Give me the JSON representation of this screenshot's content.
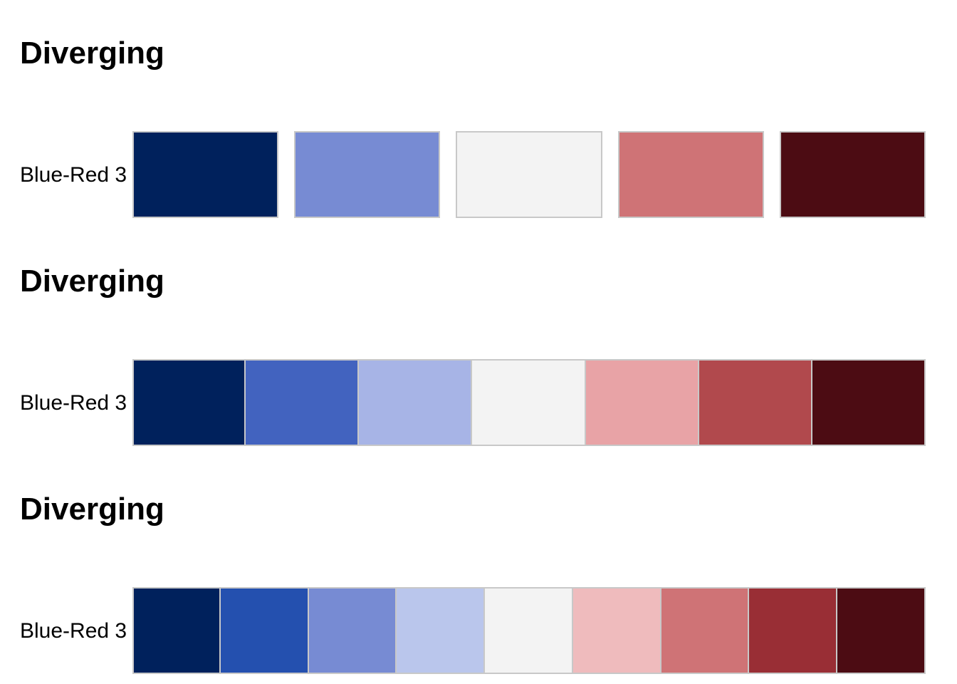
{
  "chart_data": [
    {
      "type": "palette",
      "title": "Diverging",
      "palette_name": "Blue-Red 3",
      "spacing": "gapped",
      "colors": [
        "#00215C",
        "#778BD3",
        "#F3F3F3",
        "#CF7376",
        "#4C0C13"
      ]
    },
    {
      "type": "palette",
      "title": "Diverging",
      "palette_name": "Blue-Red 3",
      "spacing": "contiguous",
      "colors": [
        "#00215C",
        "#4263BF",
        "#A7B4E6",
        "#F3F3F3",
        "#E8A3A6",
        "#B1494D",
        "#4C0C13"
      ]
    },
    {
      "type": "palette",
      "title": "Diverging",
      "palette_name": "Blue-Red 3",
      "spacing": "contiguous",
      "colors": [
        "#00215C",
        "#2450AF",
        "#778BD3",
        "#BAC6EC",
        "#F3F3F3",
        "#EFBBBD",
        "#CF7376",
        "#992E35",
        "#4C0C13"
      ]
    }
  ]
}
